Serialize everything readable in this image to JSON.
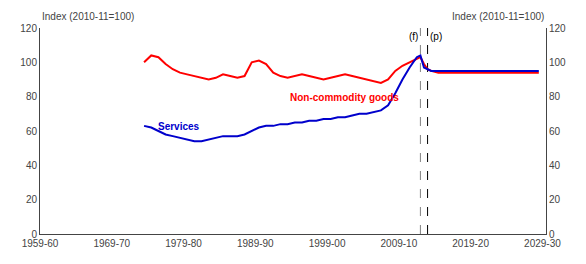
{
  "chart_data": {
    "type": "line",
    "ylabel": "Index (2010-11=100)",
    "y2label": "Index (2010-11=100)",
    "x": [
      1974,
      1975,
      1976,
      1977,
      1978,
      1979,
      1980,
      1981,
      1982,
      1983,
      1984,
      1985,
      1986,
      1987,
      1988,
      1989,
      1990,
      1991,
      1992,
      1993,
      1994,
      1995,
      1996,
      1997,
      1998,
      1999,
      2000,
      2001,
      2002,
      2003,
      2004,
      2005,
      2006,
      2007,
      2008,
      2009,
      2010,
      2011,
      2012,
      2012.5,
      2013,
      2013.5,
      2014,
      2015,
      2016,
      2017,
      2018,
      2019,
      2020,
      2021,
      2022,
      2023,
      2024,
      2025,
      2026,
      2027,
      2028,
      2029
    ],
    "series": [
      {
        "name": "Non-commodity goods",
        "color": "#FF0000",
        "values": [
          100,
          104,
          103,
          99,
          96,
          94,
          93,
          92,
          91,
          90,
          91,
          93,
          92,
          91,
          92,
          100,
          101,
          99,
          94,
          92,
          91,
          92,
          93,
          92,
          91,
          90,
          91,
          92,
          93,
          92,
          91,
          90,
          89,
          88,
          90,
          95,
          98,
          100,
          102,
          103,
          99,
          96,
          95,
          94,
          94,
          94,
          94,
          94,
          94,
          94,
          94,
          94,
          94,
          94,
          94,
          94,
          94,
          94
        ]
      },
      {
        "name": "Services",
        "color": "#0000CC",
        "values": [
          63,
          62,
          60,
          58,
          57,
          56,
          55,
          54,
          54,
          55,
          56,
          57,
          57,
          57,
          58,
          60,
          62,
          63,
          63,
          64,
          64,
          65,
          65,
          66,
          66,
          67,
          67,
          68,
          68,
          69,
          70,
          70,
          71,
          72,
          75,
          82,
          90,
          97,
          103,
          104,
          97,
          96,
          95,
          95,
          95,
          95,
          95,
          95,
          95,
          95,
          95,
          95,
          95,
          95,
          95,
          95,
          95,
          95
        ]
      }
    ],
    "vlines": [
      {
        "x": 2012.5,
        "label": "(f)",
        "color": "gray",
        "line_style": "dashed"
      },
      {
        "x": 2013.5,
        "label": "(p)",
        "color": "black",
        "line_style": "dashed"
      }
    ],
    "xlim": [
      1959.5,
      2030
    ],
    "xticks": [
      {
        "value": 1959.5,
        "label": "1959-60"
      },
      {
        "value": 1969.5,
        "label": "1969-70"
      },
      {
        "value": 1979.5,
        "label": "1979-80"
      },
      {
        "value": 1989.5,
        "label": "1989-90"
      },
      {
        "value": 1999.5,
        "label": "1999-00"
      },
      {
        "value": 2009.5,
        "label": "2009-10"
      },
      {
        "value": 2019.5,
        "label": "2019-20"
      },
      {
        "value": 2029.5,
        "label": "2029-30"
      }
    ],
    "ylim": [
      0,
      120
    ],
    "yticks": [
      0,
      20,
      40,
      60,
      80,
      100,
      120
    ],
    "y2lim": [
      0,
      120
    ],
    "y2ticks": [
      0,
      20,
      40,
      60,
      80,
      100,
      120
    ],
    "grid": false
  }
}
